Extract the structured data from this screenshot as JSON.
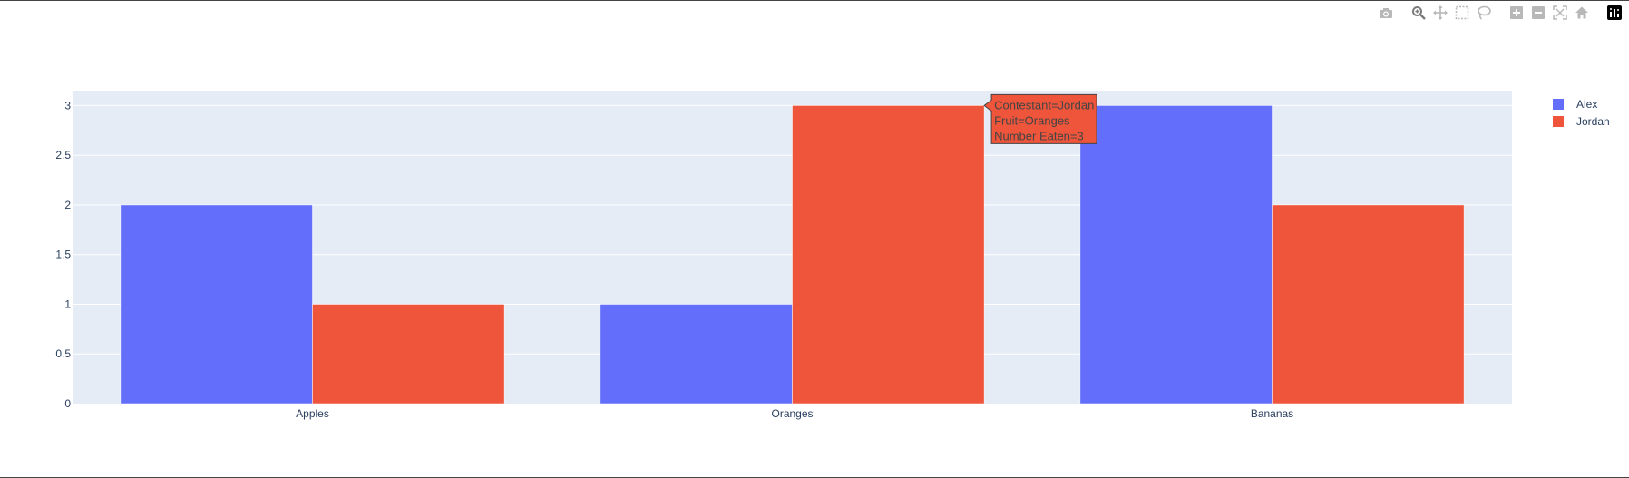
{
  "colors": {
    "plot_bg": "#e5ecf6",
    "grid": "#ffffff",
    "text": "#2a3f5f",
    "icon": "#b8b8b8",
    "icon_active": "#7c7c7c"
  },
  "modebar": {
    "buttons": [
      {
        "name": "camera-icon",
        "active": false
      },
      {
        "name": "zoom-icon",
        "active": true
      },
      {
        "name": "pan-icon",
        "active": false
      },
      {
        "name": "box-select-icon",
        "active": false
      },
      {
        "name": "lasso-select-icon",
        "active": false
      },
      {
        "name": "zoom-in-icon",
        "active": false
      },
      {
        "name": "zoom-out-icon",
        "active": false
      },
      {
        "name": "autoscale-icon",
        "active": false
      },
      {
        "name": "reset-axes-icon",
        "active": false
      },
      {
        "name": "plotly-logo-icon",
        "active": false
      }
    ]
  },
  "chart_data": {
    "type": "bar",
    "barmode": "group",
    "categories": [
      "Apples",
      "Oranges",
      "Bananas"
    ],
    "series": [
      {
        "name": "Alex",
        "color": "#636efa",
        "values": [
          2,
          1,
          3
        ]
      },
      {
        "name": "Jordan",
        "color": "#ef553b",
        "values": [
          1,
          3,
          2
        ]
      }
    ],
    "ylim": [
      0,
      3.15
    ],
    "yticks": [
      0,
      0.5,
      1,
      1.5,
      2,
      2.5,
      3
    ],
    "ytick_labels": [
      "0",
      "0.5",
      "1",
      "1.5",
      "2",
      "2.5",
      "3"
    ],
    "grid": true,
    "legend_placement": "top-right",
    "hover": {
      "series": 1,
      "category": 1,
      "lines": [
        "Contestant=Jordan",
        "Fruit=Oranges",
        "Number Eaten=3"
      ]
    }
  }
}
